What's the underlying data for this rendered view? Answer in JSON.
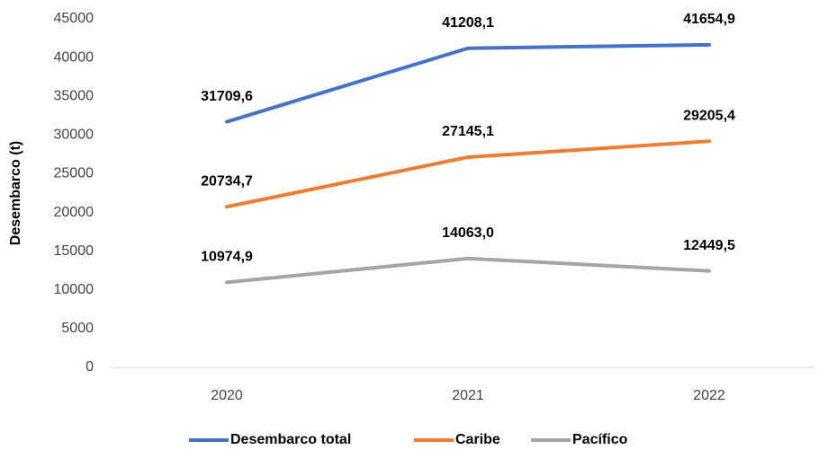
{
  "chart_data": {
    "type": "line",
    "y_label": "Desembarco (t)",
    "categories": [
      "2020",
      "2021",
      "2022"
    ],
    "series": [
      {
        "name": "Desembarco total",
        "color": "#4472c4",
        "values": [
          31709.6,
          41208.1,
          41654.9
        ],
        "value_labels": [
          "31709,6",
          "41208,1",
          "41654,9"
        ]
      },
      {
        "name": "Caribe",
        "color": "#ed7d31",
        "values": [
          20734.7,
          27145.1,
          29205.4
        ],
        "value_labels": [
          "20734,7",
          "27145,1",
          "29205,4"
        ]
      },
      {
        "name": "Pacífico",
        "color": "#a5a5a5",
        "values": [
          10974.9,
          14063.0,
          12449.5
        ],
        "value_labels": [
          "10974,9",
          "14063,0",
          "12449,5"
        ]
      }
    ],
    "ylim": [
      0,
      45000
    ],
    "yticks": [
      0,
      5000,
      10000,
      15000,
      20000,
      25000,
      30000,
      35000,
      40000,
      45000
    ],
    "grid": false,
    "legend": "bottom"
  }
}
